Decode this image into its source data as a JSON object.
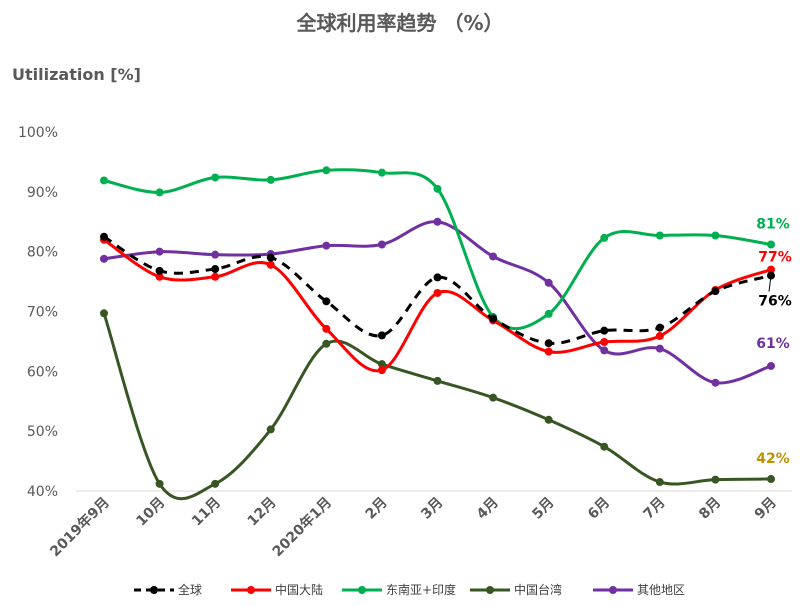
{
  "chart_data": {
    "type": "line",
    "title": "全球利用率趋势 （%）",
    "ylabel": "Utilization [%]",
    "xlabel": "",
    "x": [
      "2019年9月",
      "10月",
      "11月",
      "12月",
      "2020年1月",
      "2月",
      "3月",
      "4月",
      "5月",
      "6月",
      "7月",
      "8月",
      "9月"
    ],
    "ylim": [
      40,
      100
    ],
    "yticks": [
      "40%",
      "50%",
      "60%",
      "70%",
      "80%",
      "90%",
      "100%"
    ],
    "grid": false,
    "legend_position": "bottom",
    "series": [
      {
        "name": "全球",
        "color": "#000000",
        "dashed": true,
        "values": [
          82.5,
          76.8,
          77.1,
          79.0,
          71.7,
          66.0,
          75.7,
          68.8,
          64.7,
          66.8,
          67.3,
          73.4,
          76.0
        ],
        "end_label": "76%",
        "end_label_color": "#000000"
      },
      {
        "name": "中国大陆",
        "color": "#ff0000",
        "dashed": false,
        "values": [
          82.0,
          75.8,
          75.8,
          77.8,
          67.1,
          60.2,
          73.1,
          68.5,
          63.3,
          64.9,
          65.9,
          73.6,
          77.0
        ],
        "end_label": "77%",
        "end_label_color": "#ff0000"
      },
      {
        "name": "东南亚+印度",
        "color": "#00b050",
        "dashed": false,
        "values": [
          91.9,
          89.9,
          92.4,
          92.0,
          93.6,
          93.2,
          90.5,
          69.1,
          69.6,
          82.3,
          82.7,
          82.7,
          81.2
        ],
        "end_label": "81%",
        "end_label_color": "#00b050"
      },
      {
        "name": "中国台湾",
        "color": "#375623",
        "dashed": false,
        "values": [
          69.7,
          41.2,
          41.2,
          50.3,
          64.6,
          61.2,
          58.4,
          55.6,
          51.9,
          47.4,
          41.5,
          41.9,
          42.0
        ],
        "end_label": "42%",
        "end_label_color": "#bf9000"
      },
      {
        "name": "其他地区",
        "color": "#7030a0",
        "dashed": false,
        "values": [
          78.8,
          80.0,
          79.5,
          79.6,
          81.0,
          81.2,
          85.0,
          79.2,
          74.8,
          63.5,
          63.8,
          58.1,
          60.9
        ],
        "end_label": "61%",
        "end_label_color": "#7030a0"
      }
    ]
  }
}
